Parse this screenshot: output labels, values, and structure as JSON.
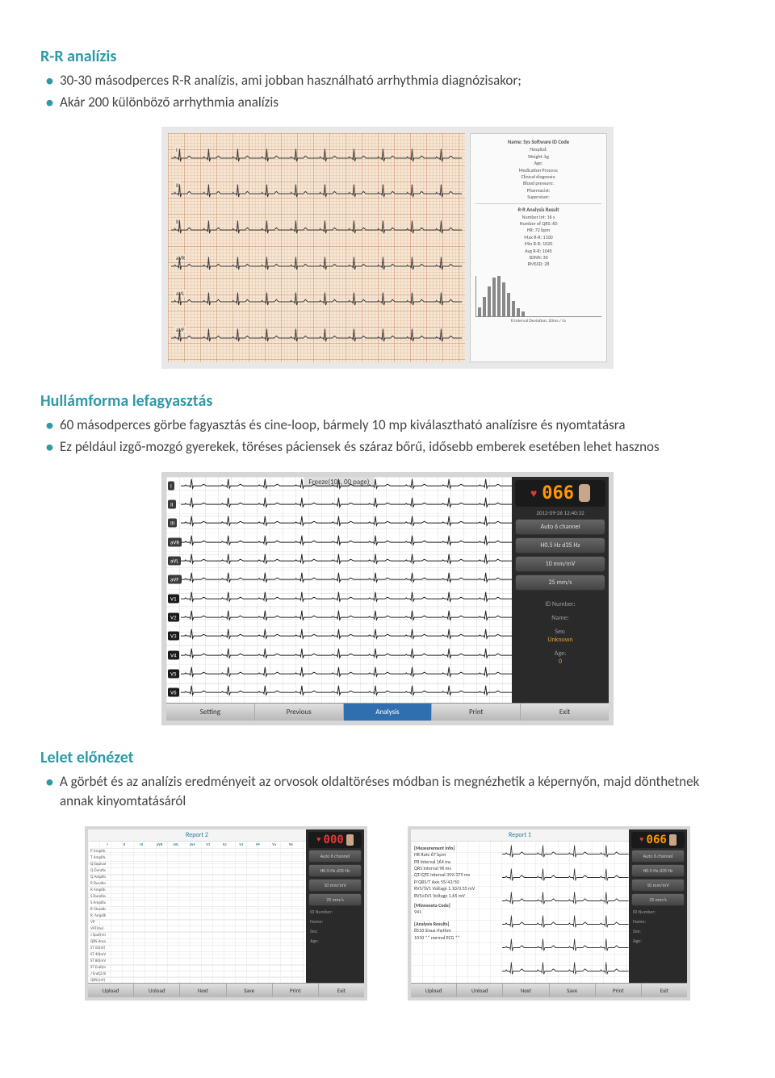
{
  "colors": {
    "heading": "#2d9aa8",
    "bullet": "#2d9aa8",
    "body_text": "#555555",
    "background": "#ffffff"
  },
  "sections": {
    "rr": {
      "title": "R-R analízis",
      "bullets": [
        "30-30 másodperces R-R analízis, ami jobban használható arrhythmia diagnózisakor;",
        "Akár 200 különböző arrhythmia analízis"
      ]
    },
    "freeze": {
      "title": "Hullámforma lefagyasztás",
      "bullets": [
        "60 másodperces görbe fagyasztás és cine-loop, bármely 10 mp kiválasztható analízisre és nyomtatásra",
        "Ez például izgő-mozgó gyerekek, töréses páciensek és száraz bőrű, idősebb emberek esetében lehet hasznos"
      ]
    },
    "preview": {
      "title": "Lelet előnézet",
      "bullets": [
        "A görbét és az analízis eredményeit az orvosok oldaltöréses módban is megnézhetik a képernyőn, majd dönthetnek annak kinyomtatásáról"
      ]
    }
  },
  "ecg_printout": {
    "leads": [
      "I",
      "II",
      "III",
      "aVR",
      "aVL",
      "aVF"
    ],
    "grid_color": "#c97850",
    "paper_color": "#f5e6d3",
    "report": {
      "header_top": "Name: Sys Software ID Code",
      "lines": [
        "Hospital:",
        "Weight: kg",
        "Age:",
        "Medication Process:",
        "Clinical diagnosis:",
        "Blood pressure:",
        "Pharmacist:",
        "Supervisor:"
      ],
      "section2_title": "R-R Analysis Result",
      "metrics": [
        "Number Int: 16 s",
        "Number of QRS: 60",
        "HR: 72 bpm",
        "Max R-R: 1100",
        "Min R-R: 1020",
        "Avg R-R: 1045",
        "SDNN: 30",
        "RMSSD: 28"
      ],
      "footer": "R Interval Deviation: 20ms / 5s",
      "histogram": [
        20,
        45,
        70,
        90,
        95,
        80,
        55,
        35,
        18,
        10
      ]
    }
  },
  "ecg_monitor": {
    "freeze_label": "Freeze(10s, 00 page)",
    "leads": [
      "I",
      "II",
      "III",
      "aVR",
      "aVL",
      "aVF",
      "V1",
      "V2",
      "V3",
      "V4",
      "V5",
      "V6"
    ],
    "bpm": "066",
    "timestamp": "2012-09-26 12:40:32",
    "side_buttons": [
      "Auto 6 channel",
      "H0.5 Hz d35 Hz",
      "10 mm/mV",
      "25 mm/s"
    ],
    "info": {
      "id_number_label": "ID Number:",
      "name_label": "Name:",
      "sex_label": "Sex:",
      "sex_value": "Unknown",
      "age_label": "Age:",
      "age_value": "0"
    },
    "bottom_buttons": [
      "Setting",
      "Previous",
      "Analysis",
      "Print",
      "Exit"
    ],
    "active_bottom": 2
  },
  "report2": {
    "title": "Report 2",
    "bpm": "000",
    "bpm_color": "red",
    "columns": [
      "",
      "I",
      "II",
      "III",
      "aVR",
      "aVL",
      "aVF",
      "V1",
      "V2",
      "V3",
      "V4",
      "V5",
      "V6"
    ],
    "rows": [
      [
        "P Amplitude(mV)",
        "",
        "",
        "",
        "",
        "",
        "",
        "",
        "",
        "",
        "",
        "",
        ""
      ],
      [
        "T Amplitude(mV)",
        "",
        "",
        "",
        "",
        "",
        "",
        "",
        "",
        "",
        "",
        "",
        ""
      ],
      [
        "Q Equivalent(mV)",
        "",
        "",
        "",
        "",
        "",
        "",
        "",
        "",
        "",
        "",
        "",
        ""
      ],
      [
        "Q Duration(ms)",
        "",
        "",
        "",
        "",
        "",
        "",
        "",
        "",
        "",
        "",
        "",
        ""
      ],
      [
        "Q Amplitude(mV)",
        "",
        "",
        "",
        "",
        "",
        "",
        "",
        "",
        "",
        "",
        "",
        ""
      ],
      [
        "R Duration(ms)",
        "",
        "",
        "",
        "",
        "",
        "",
        "",
        "",
        "",
        "",
        "",
        ""
      ],
      [
        "R Amplitude(mV)",
        "",
        "",
        "",
        "",
        "",
        "",
        "",
        "",
        "",
        "",
        "",
        ""
      ],
      [
        "S Duration(ms)",
        "",
        "",
        "",
        "",
        "",
        "",
        "",
        "",
        "",
        "",
        "",
        ""
      ],
      [
        "S Amplitude(mV)",
        "",
        "",
        "",
        "",
        "",
        "",
        "",
        "",
        "",
        "",
        "",
        ""
      ],
      [
        "R' Duration(ms)",
        "",
        "",
        "",
        "",
        "",
        "",
        "",
        "",
        "",
        "",
        "",
        ""
      ],
      [
        "R' Amplitude(mV)",
        "",
        "",
        "",
        "",
        "",
        "",
        "",
        "",
        "",
        "",
        "",
        ""
      ],
      [
        "VP",
        "",
        "",
        "",
        "",
        "",
        "",
        "",
        "",
        "",
        "",
        "",
        ""
      ],
      [
        "VAT(ms)",
        "",
        "",
        "",
        "",
        "",
        "",
        "",
        "",
        "",
        "",
        "",
        ""
      ],
      [
        "J Spot(mV)",
        "",
        "",
        "",
        "",
        "",
        "",
        "",
        "",
        "",
        "",
        "",
        ""
      ],
      [
        "QRS Area #(mV)",
        "",
        "",
        "",
        "",
        "",
        "",
        "",
        "",
        "",
        "",
        "",
        ""
      ],
      [
        "ST 0(mV)",
        "",
        "",
        "",
        "",
        "",
        "",
        "",
        "",
        "",
        "",
        "",
        ""
      ],
      [
        "ST 40(mV)",
        "",
        "",
        "",
        "",
        "",
        "",
        "",
        "",
        "",
        "",
        "",
        ""
      ],
      [
        "ST 80(mV)",
        "",
        "",
        "",
        "",
        "",
        "",
        "",
        "",
        "",
        "",
        "",
        ""
      ],
      [
        "ST End(mV)",
        "",
        "",
        "",
        "",
        "",
        "",
        "",
        "",
        "",
        "",
        "",
        ""
      ],
      [
        "J End(2/8)(mV)",
        "",
        "",
        "",
        "",
        "",
        "",
        "",
        "",
        "",
        "",
        "",
        ""
      ],
      [
        "QRS(mV)",
        "",
        "",
        "",
        "",
        "",
        "",
        "",
        "",
        "",
        "",
        "",
        ""
      ],
      [
        "Delta Wave",
        "",
        "",
        "",
        "",
        "",
        "",
        "",
        "",
        "",
        "",
        "",
        ""
      ]
    ],
    "side_buttons": [
      "Auto 6 channel",
      "H0.5 Hz d35 Hz",
      "10 mm/mV",
      "25 mm/s"
    ],
    "info_labels": [
      "ID Number:",
      "Name:",
      "Sex:",
      "Age:"
    ],
    "bottom_buttons": [
      "Upload",
      "Unload",
      "Next",
      "Save",
      "Print",
      "Exit"
    ]
  },
  "report1": {
    "title": "Report 1",
    "bpm": "066",
    "bpm_color": "orange",
    "measurement_title": "[Measurement Info]",
    "measurements": [
      "HR Rate        67 bpm",
      "PR Interval   164 ms",
      "QRS Interval   96 ms",
      "QT/QTC Interval 359/379 ms",
      "P/QRS/T Axis   55/43/50",
      "RV5/SV1 Voltage 1.10/0.55 mV",
      "RV5+SV1 Voltage  1.65 mV"
    ],
    "minnesota_label": "[Minnesota Code]",
    "minnesota_value": "941",
    "analysis_title": "[Analysis Results]",
    "analysis_lines": [
      "8510  Sinus rhythm",
      "1010  ** normal ECG **"
    ],
    "side_buttons": [
      "Auto 6 channel",
      "H0.5 Hz d35 Hz",
      "10 mm/mV",
      "25 mm/s"
    ],
    "info_labels": [
      "ID Number:",
      "Name:",
      "Sex:",
      "Age:"
    ],
    "bottom_buttons": [
      "Upload",
      "Unload",
      "Next",
      "Save",
      "Print",
      "Exit"
    ]
  }
}
